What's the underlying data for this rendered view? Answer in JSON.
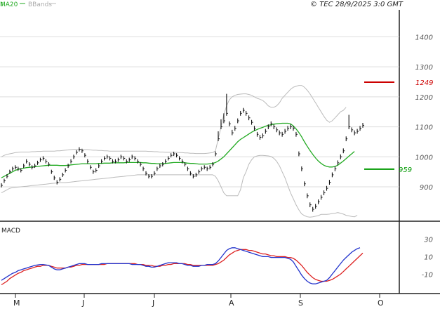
{
  "header": {
    "ma_label": "MA20",
    "bbands_label": "BBands",
    "copyright": "© TEC 28/9/2025 3:0 GMT"
  },
  "macd": {
    "label": "MACD"
  },
  "colors": {
    "ma": "#22aa22",
    "bbands": "#bbbbbb",
    "price_bars": "#111111",
    "macd_line": "#2233cc",
    "signal_line": "#dd2222",
    "resistance": "#cc0000",
    "support": "#009900",
    "grid": "#dddddd"
  },
  "chart_data": [
    {
      "type": "ohlc",
      "title": "",
      "ylim": [
        790,
        1490
      ],
      "y_ticks": [
        900,
        1000,
        1100,
        1200,
        1300,
        1400
      ],
      "x_month_labels": [
        "M",
        "J",
        "J",
        "A",
        "S",
        "O"
      ],
      "resistance": {
        "value": 1249,
        "label": "1249"
      },
      "support": {
        "value": 959,
        "label": "959"
      },
      "legend": [
        "MA20",
        "BBands"
      ],
      "series": {
        "close": [
          905,
          920,
          935,
          950,
          960,
          965,
          960,
          955,
          970,
          985,
          975,
          965,
          970,
          980,
          990,
          995,
          985,
          975,
          950,
          930,
          915,
          925,
          940,
          955,
          970,
          985,
          1000,
          1015,
          1025,
          1020,
          1005,
          985,
          965,
          950,
          955,
          970,
          985,
          995,
          1000,
          995,
          985,
          985,
          990,
          1000,
          995,
          985,
          990,
          1000,
          995,
          985,
          975,
          960,
          945,
          935,
          935,
          945,
          960,
          970,
          975,
          985,
          995,
          1005,
          1010,
          1005,
          995,
          985,
          975,
          960,
          945,
          935,
          940,
          950,
          960,
          965,
          960,
          965,
          975,
          1010,
          1060,
          1100,
          1120,
          1145,
          1110,
          1080,
          1095,
          1120,
          1145,
          1155,
          1145,
          1130,
          1115,
          1095,
          1075,
          1065,
          1070,
          1085,
          1100,
          1110,
          1100,
          1090,
          1080,
          1075,
          1085,
          1095,
          1100,
          1095,
          1075,
          1010,
          960,
          910,
          870,
          840,
          825,
          835,
          850,
          865,
          880,
          895,
          915,
          940,
          960,
          980,
          1000,
          1020,
          1060,
          1100,
          1090,
          1080,
          1085,
          1095,
          1105
        ],
        "high": [
          912,
          927,
          942,
          957,
          967,
          972,
          967,
          962,
          977,
          992,
          982,
          972,
          977,
          987,
          997,
          1002,
          992,
          982,
          957,
          937,
          922,
          932,
          947,
          962,
          977,
          992,
          1007,
          1022,
          1032,
          1027,
          1012,
          992,
          972,
          957,
          962,
          977,
          992,
          1002,
          1007,
          1002,
          992,
          992,
          997,
          1007,
          1002,
          992,
          997,
          1007,
          1002,
          992,
          982,
          967,
          952,
          942,
          942,
          952,
          967,
          977,
          982,
          992,
          1002,
          1012,
          1017,
          1012,
          1002,
          992,
          982,
          967,
          952,
          942,
          947,
          957,
          967,
          972,
          967,
          972,
          982,
          1018,
          1085,
          1125,
          1145,
          1210,
          1118,
          1090,
          1103,
          1128,
          1153,
          1163,
          1153,
          1138,
          1123,
          1103,
          1083,
          1073,
          1078,
          1093,
          1108,
          1118,
          1108,
          1098,
          1088,
          1083,
          1093,
          1103,
          1108,
          1103,
          1083,
          1018,
          968,
          918,
          878,
          848,
          833,
          843,
          858,
          873,
          888,
          903,
          923,
          948,
          968,
          988,
          1008,
          1028,
          1068,
          1140,
          1098,
          1088,
          1093,
          1103,
          1113
        ],
        "low": [
          898,
          913,
          928,
          943,
          953,
          958,
          953,
          948,
          963,
          978,
          968,
          958,
          963,
          973,
          983,
          988,
          978,
          968,
          943,
          923,
          908,
          918,
          933,
          948,
          963,
          978,
          993,
          1008,
          1018,
          1013,
          998,
          978,
          958,
          943,
          948,
          963,
          978,
          988,
          993,
          988,
          978,
          978,
          983,
          993,
          988,
          978,
          983,
          993,
          988,
          978,
          968,
          953,
          938,
          928,
          928,
          938,
          953,
          963,
          968,
          978,
          988,
          998,
          1003,
          998,
          988,
          978,
          968,
          953,
          938,
          928,
          933,
          943,
          953,
          958,
          953,
          958,
          968,
          1002,
          1052,
          1092,
          1112,
          1137,
          1102,
          1072,
          1087,
          1112,
          1137,
          1147,
          1137,
          1122,
          1107,
          1087,
          1067,
          1057,
          1062,
          1077,
          1092,
          1102,
          1092,
          1082,
          1072,
          1067,
          1077,
          1087,
          1092,
          1087,
          1067,
          1002,
          952,
          902,
          862,
          832,
          817,
          827,
          842,
          857,
          872,
          887,
          907,
          932,
          952,
          972,
          992,
          1012,
          1052,
          1092,
          1082,
          1072,
          1077,
          1087,
          1097
        ],
        "ma20": [
          930,
          935,
          940,
          945,
          950,
          955,
          958,
          960,
          962,
          964,
          965,
          966,
          967,
          968,
          969,
          970,
          971,
          972,
          972,
          972,
          972,
          971,
          971,
          971,
          972,
          973,
          974,
          975,
          976,
          977,
          977,
          977,
          977,
          977,
          977,
          978,
          978,
          979,
          979,
          979,
          980,
          980,
          980,
          980,
          980,
          981,
          981,
          981,
          981,
          981,
          981,
          980,
          980,
          979,
          978,
          978,
          977,
          977,
          977,
          978,
          979,
          980,
          981,
          981,
          981,
          981,
          980,
          979,
          978,
          978,
          977,
          976,
          976,
          976,
          976,
          977,
          978,
          981,
          986,
          993,
          1000,
          1010,
          1020,
          1030,
          1040,
          1050,
          1058,
          1064,
          1070,
          1076,
          1082,
          1087,
          1091,
          1095,
          1098,
          1102,
          1105,
          1107,
          1109,
          1110,
          1111,
          1112,
          1112,
          1112,
          1110,
          1103,
          1093,
          1081,
          1067,
          1050,
          1035,
          1021,
          1008,
          996,
          986,
          978,
          972,
          968,
          966,
          966,
          968,
          972,
          979,
          986,
          994,
          1002,
          1010,
          1018
        ],
        "bb_upper": [
          1000,
          1005,
          1008,
          1010,
          1012,
          1014,
          1015,
          1016,
          1016,
          1016,
          1016,
          1017,
          1017,
          1018,
          1018,
          1019,
          1019,
          1019,
          1019,
          1019,
          1020,
          1020,
          1021,
          1022,
          1023,
          1024,
          1025,
          1025,
          1025,
          1025,
          1024,
          1024,
          1023,
          1022,
          1022,
          1021,
          1021,
          1020,
          1020,
          1019,
          1019,
          1019,
          1019,
          1019,
          1019,
          1019,
          1019,
          1019,
          1019,
          1019,
          1019,
          1019,
          1019,
          1018,
          1018,
          1017,
          1017,
          1016,
          1016,
          1015,
          1015,
          1015,
          1015,
          1015,
          1014,
          1014,
          1013,
          1013,
          1012,
          1012,
          1011,
          1011,
          1011,
          1011,
          1012,
          1013,
          1014,
          1020,
          1060,
          1100,
          1140,
          1170,
          1190,
          1200,
          1205,
          1208,
          1209,
          1210,
          1210,
          1208,
          1205,
          1200,
          1195,
          1192,
          1188,
          1180,
          1170,
          1165,
          1165,
          1170,
          1180,
          1195,
          1205,
          1215,
          1225,
          1232,
          1235,
          1238,
          1238,
          1232,
          1222,
          1210,
          1195,
          1180,
          1165,
          1150,
          1135,
          1122,
          1115,
          1120,
          1130,
          1140,
          1150,
          1155,
          1165
        ],
        "bb_lower": [
          880,
          885,
          890,
          895,
          897,
          898,
          899,
          900,
          901,
          902,
          903,
          904,
          905,
          906,
          907,
          908,
          909,
          910,
          911,
          912,
          913,
          914,
          914,
          914,
          915,
          916,
          917,
          918,
          919,
          920,
          921,
          922,
          923,
          924,
          925,
          926,
          927,
          928,
          929,
          930,
          931,
          932,
          933,
          934,
          935,
          936,
          937,
          938,
          939,
          940,
          940,
          940,
          940,
          940,
          940,
          940,
          940,
          940,
          940,
          940,
          940,
          940,
          940,
          940,
          940,
          940,
          940,
          940,
          940,
          940,
          940,
          940,
          940,
          940,
          940,
          940,
          940,
          935,
          920,
          900,
          880,
          870,
          870,
          870,
          870,
          870,
          890,
          930,
          950,
          975,
          990,
          1000,
          1003,
          1005,
          1005,
          1004,
          1003,
          1001,
          995,
          985,
          970,
          950,
          930,
          905,
          880,
          860,
          840,
          823,
          810,
          804,
          800,
          799,
          800,
          802,
          804,
          808,
          808,
          808,
          809,
          811,
          812,
          814,
          812,
          809,
          805,
          803,
          801,
          800,
          805
        ]
      }
    },
    {
      "type": "line",
      "title": "MACD",
      "ylim": [
        -32,
        47
      ],
      "y_ticks": [
        30,
        10,
        -10
      ],
      "y_tick_labels": [
        "30",
        "10",
        "-10"
      ],
      "series": [
        {
          "name": "",
          "values": [
            -17,
            -15,
            -13,
            -11,
            -9,
            -8,
            -6,
            -5,
            -4,
            -3,
            -2,
            -1,
            0,
            0.5,
            1,
            1,
            0.5,
            0,
            -2,
            -4,
            -5,
            -5,
            -4,
            -3,
            -2,
            -1,
            0,
            1,
            2,
            2,
            2,
            1,
            1,
            1,
            1,
            1,
            2,
            2,
            2,
            2,
            2,
            2,
            2,
            2,
            2,
            2,
            2,
            1,
            1,
            1,
            1,
            0,
            -1,
            -1,
            -2,
            -2,
            -1,
            0,
            1,
            2,
            3,
            3,
            3,
            3,
            2,
            2,
            1,
            0,
            0,
            -1,
            -1,
            -1,
            0,
            0,
            1,
            1,
            1,
            2,
            5,
            9,
            13,
            17,
            19,
            20,
            20,
            19,
            18,
            17,
            16,
            15,
            14,
            13,
            12,
            11,
            10,
            10,
            10,
            9,
            9,
            9,
            9,
            9,
            9,
            8,
            7,
            4,
            -1,
            -6,
            -11,
            -15,
            -18,
            -20,
            -21,
            -21,
            -20,
            -19,
            -18,
            -17,
            -14,
            -10,
            -6,
            -2,
            2,
            6,
            9,
            12,
            15,
            17,
            19,
            20
          ]
        },
        {
          "name": "",
          "values": [
            -22,
            -20,
            -18,
            -15,
            -13,
            -11,
            -9,
            -8,
            -6,
            -5,
            -4,
            -3,
            -2,
            -1,
            -1,
            0,
            0,
            0,
            -1,
            -2,
            -3,
            -3,
            -3,
            -3,
            -2,
            -2,
            -1,
            0,
            0,
            1,
            1,
            1,
            1,
            1,
            1,
            1,
            1,
            1,
            2,
            2,
            2,
            2,
            2,
            2,
            2,
            2,
            2,
            2,
            2,
            1,
            1,
            1,
            0,
            0,
            0,
            -1,
            -1,
            -1,
            0,
            0,
            1,
            1,
            2,
            2,
            2,
            2,
            2,
            1,
            1,
            0,
            0,
            0,
            0,
            0,
            0,
            0,
            0,
            1,
            2,
            4,
            6,
            9,
            12,
            14,
            16,
            17,
            18,
            18,
            18,
            17,
            17,
            16,
            15,
            14,
            13,
            13,
            12,
            11,
            11,
            10,
            10,
            10,
            10,
            9,
            9,
            8,
            6,
            3,
            0,
            -4,
            -8,
            -11,
            -14,
            -16,
            -17,
            -18,
            -18,
            -18,
            -17,
            -16,
            -14,
            -12,
            -10,
            -7,
            -4,
            -1,
            2,
            5,
            8,
            11,
            14
          ]
        }
      ]
    }
  ]
}
